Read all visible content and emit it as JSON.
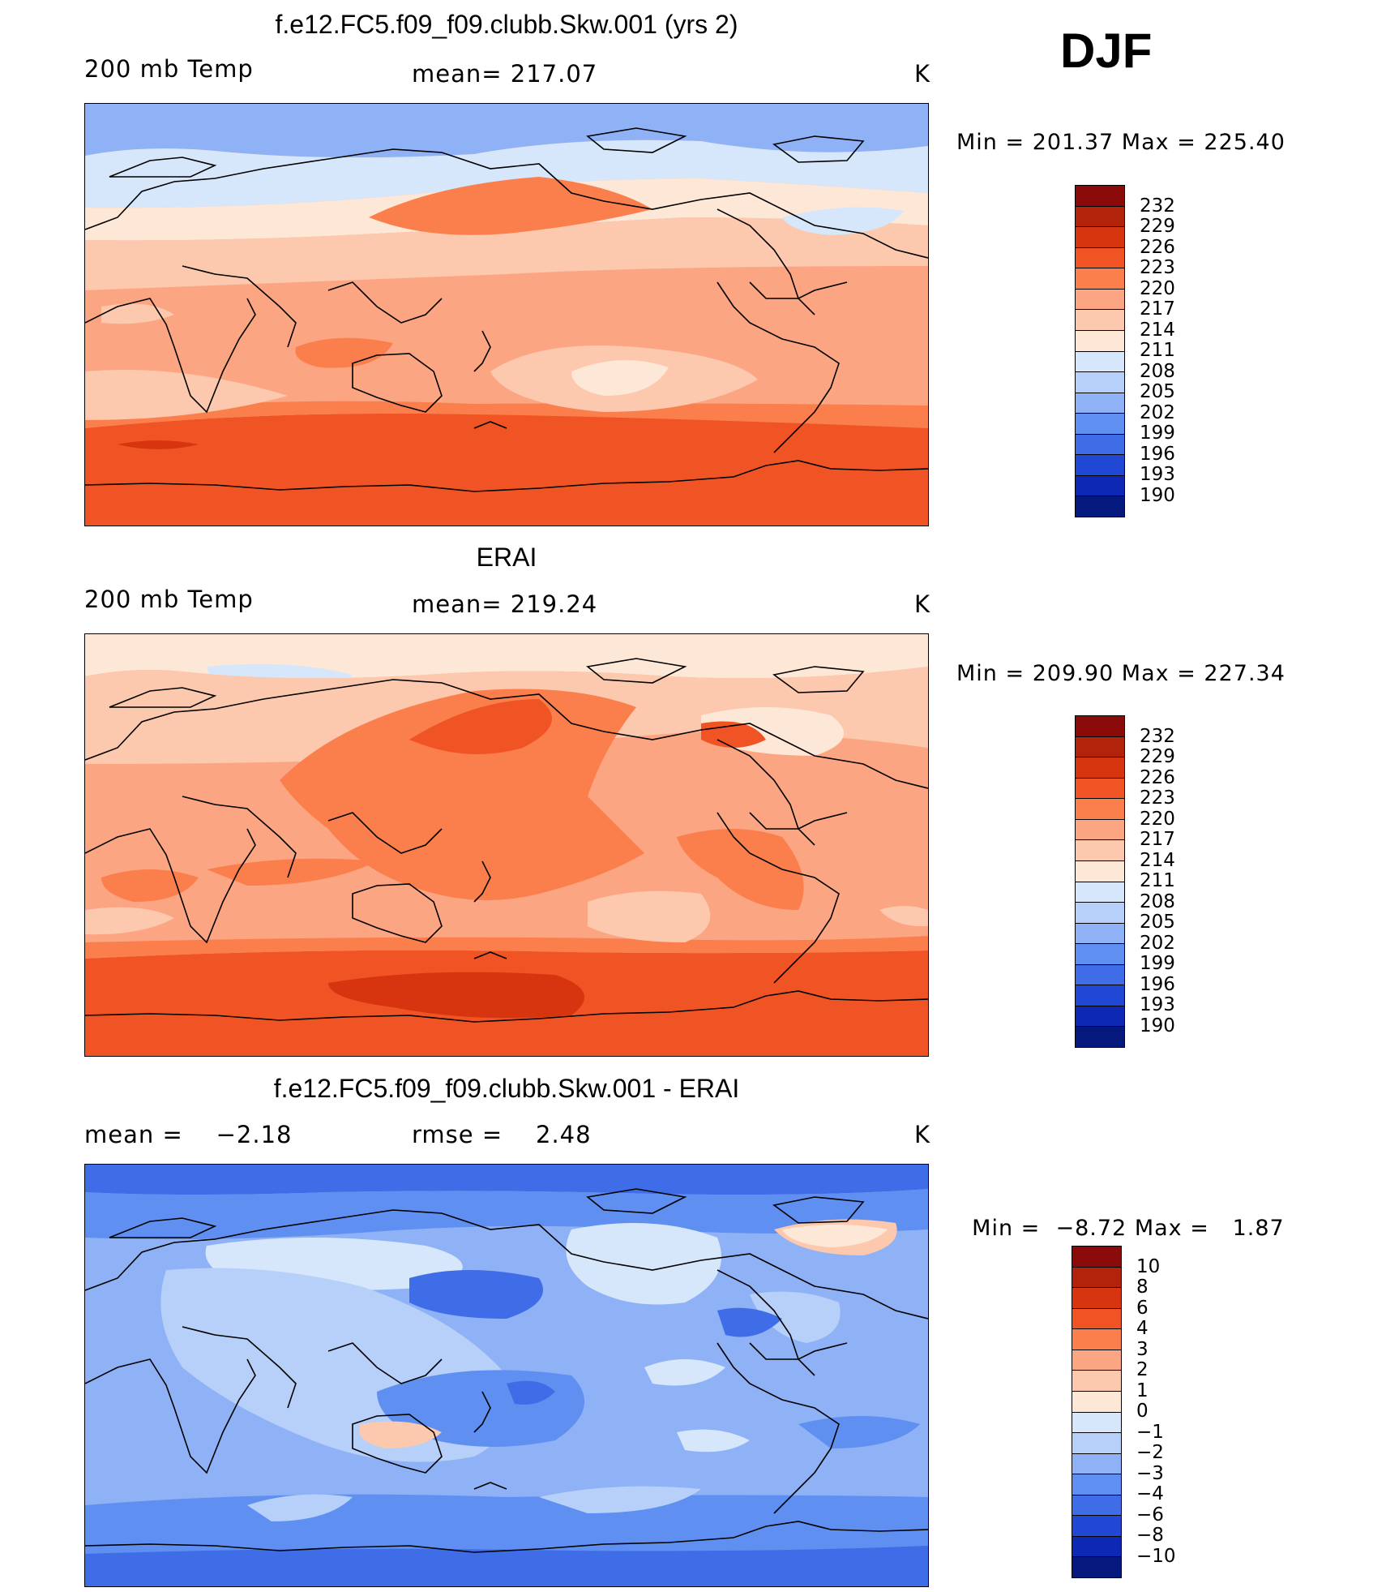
{
  "season": "DJF",
  "units": "K",
  "panels": [
    {
      "id": "model",
      "title": "f.e12.FC5.f09_f09.clubb.Skw.001 (yrs 2)",
      "left_label": "200 mb Temp",
      "center_label": "mean= 217.07",
      "units": "K",
      "min_label": "Min",
      "min_value": "201.37",
      "max_label": "Max",
      "max_value": "225.40",
      "colorbar": {
        "labels": [
          "232",
          "229",
          "226",
          "223",
          "220",
          "217",
          "214",
          "211",
          "208",
          "205",
          "202",
          "199",
          "196",
          "193",
          "190"
        ],
        "colors": [
          "#8b0b0b",
          "#b3220b",
          "#d63510",
          "#f15424",
          "#fb7f4d",
          "#fca582",
          "#fcc9ae",
          "#fde8d8",
          "#d6e7fb",
          "#b6d0f9",
          "#8fb1f5",
          "#5f8ff0",
          "#3f6de8",
          "#2048d4",
          "#0c28b4",
          "#04187e"
        ]
      }
    },
    {
      "id": "obs",
      "title": "ERAI",
      "left_label": "200 mb Temp",
      "center_label": "mean= 219.24",
      "units": "K",
      "min_label": "Min",
      "min_value": "209.90",
      "max_label": "Max",
      "max_value": "227.34",
      "colorbar": {
        "labels": [
          "232",
          "229",
          "226",
          "223",
          "220",
          "217",
          "214",
          "211",
          "208",
          "205",
          "202",
          "199",
          "196",
          "193",
          "190"
        ],
        "colors": [
          "#8b0b0b",
          "#b3220b",
          "#d63510",
          "#f15424",
          "#fb7f4d",
          "#fca582",
          "#fcc9ae",
          "#fde8d8",
          "#d6e7fb",
          "#b6d0f9",
          "#8fb1f5",
          "#5f8ff0",
          "#3f6de8",
          "#2048d4",
          "#0c28b4",
          "#04187e"
        ]
      }
    },
    {
      "id": "diff",
      "title": "f.e12.FC5.f09_f09.clubb.Skw.001 - ERAI",
      "left_label": "mean =    −2.18",
      "center_label": "rmse =    2.48",
      "units": "K",
      "min_label": "Min",
      "min_value": "−8.72",
      "max_label": "Max",
      "max_value": "1.87",
      "colorbar": {
        "labels": [
          "10",
          "8",
          "6",
          "4",
          "3",
          "2",
          "1",
          "0",
          "−1",
          "−2",
          "−3",
          "−4",
          "−6",
          "−8",
          "−10"
        ],
        "colors": [
          "#8b0b0b",
          "#b3220b",
          "#d63510",
          "#f15424",
          "#fb7f4d",
          "#fca582",
          "#fcc9ae",
          "#fde8d8",
          "#d6e7fb",
          "#b6d0f9",
          "#8fb1f5",
          "#5f8ff0",
          "#3f6de8",
          "#2048d4",
          "#0c28b4",
          "#04187e"
        ]
      }
    }
  ]
}
